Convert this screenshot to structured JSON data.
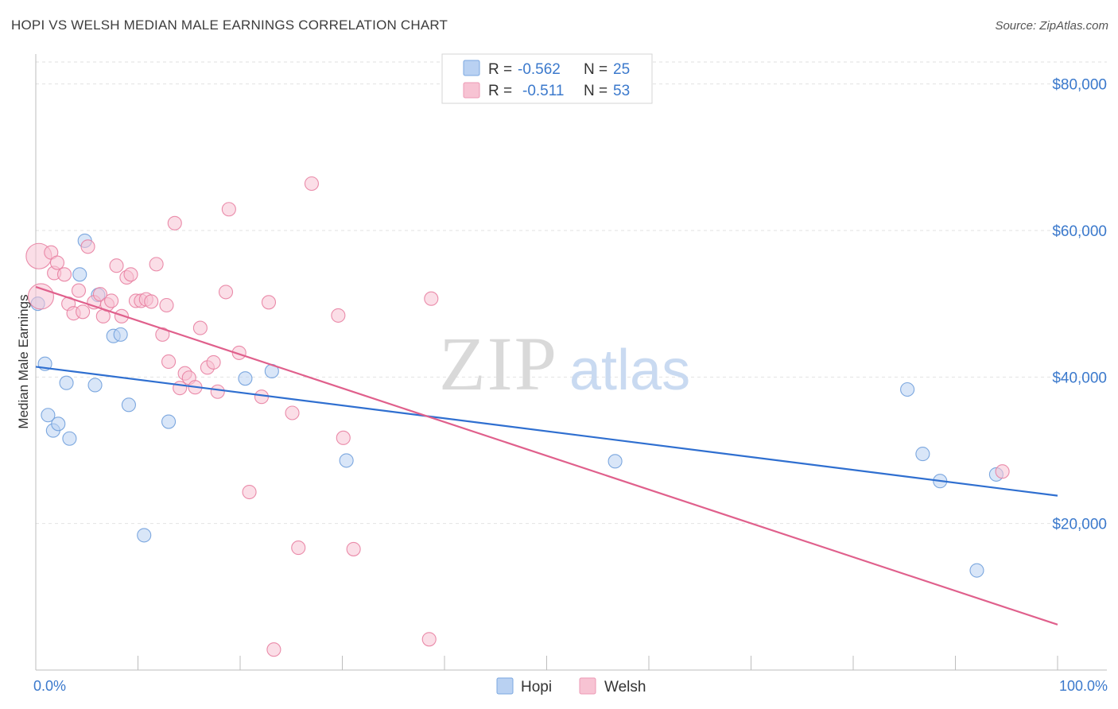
{
  "title": "HOPI VS WELSH MEDIAN MALE EARNINGS CORRELATION CHART",
  "source": "Source: ZipAtlas.com",
  "watermark": {
    "zip": "ZIP",
    "atlas": "atlas"
  },
  "legend_top": [
    {
      "r_label": "R = ",
      "r_value": "-0.562",
      "n_label": "N = ",
      "n_value": "25",
      "color": "#a9c6ef"
    },
    {
      "r_label": "R = ",
      "r_value": "-0.511",
      "n_label": "N = ",
      "n_value": "53",
      "color": "#f4b5c8"
    }
  ],
  "chart_data": {
    "type": "scatter",
    "title": "HOPI VS WELSH MEDIAN MALE EARNINGS CORRELATION CHART",
    "xlabel": "",
    "ylabel": "Median Male Earnings",
    "xlim": [
      0,
      100
    ],
    "ylim": [
      0,
      83000
    ],
    "x_tick_labels": [
      "0.0%",
      "100.0%"
    ],
    "y_ticks": [
      20000,
      40000,
      60000,
      80000
    ],
    "y_tick_labels": [
      "$20,000",
      "$40,000",
      "$60,000",
      "$80,000"
    ],
    "grid": true,
    "legend_position": "bottom-center",
    "series": [
      {
        "name": "Hopi",
        "color": "#6f9fdc",
        "fill": "#b9d1f2",
        "trend": {
          "x": [
            0,
            100
          ],
          "y": [
            41400,
            23800
          ]
        },
        "points": [
          {
            "x": 0.2,
            "y": 50000
          },
          {
            "x": 0.9,
            "y": 41800
          },
          {
            "x": 1.2,
            "y": 34800
          },
          {
            "x": 1.7,
            "y": 32700
          },
          {
            "x": 2.2,
            "y": 33600
          },
          {
            "x": 3.0,
            "y": 39200
          },
          {
            "x": 3.3,
            "y": 31600
          },
          {
            "x": 4.3,
            "y": 54000
          },
          {
            "x": 4.8,
            "y": 58600
          },
          {
            "x": 5.8,
            "y": 38900
          },
          {
            "x": 6.1,
            "y": 51200
          },
          {
            "x": 7.6,
            "y": 45600
          },
          {
            "x": 8.3,
            "y": 45800
          },
          {
            "x": 9.1,
            "y": 36200
          },
          {
            "x": 10.6,
            "y": 18400
          },
          {
            "x": 13.0,
            "y": 33900
          },
          {
            "x": 20.5,
            "y": 39800
          },
          {
            "x": 23.1,
            "y": 40800
          },
          {
            "x": 30.4,
            "y": 28600
          },
          {
            "x": 56.7,
            "y": 28500
          },
          {
            "x": 85.3,
            "y": 38300
          },
          {
            "x": 86.8,
            "y": 29500
          },
          {
            "x": 88.5,
            "y": 25800
          },
          {
            "x": 92.1,
            "y": 13600
          },
          {
            "x": 94.0,
            "y": 26700
          }
        ]
      },
      {
        "name": "Welsh",
        "color": "#e87fa1",
        "fill": "#f7c3d3",
        "trend": {
          "x": [
            0,
            100
          ],
          "y": [
            52300,
            6200
          ]
        },
        "points": [
          {
            "x": 0.3,
            "y": 56500,
            "big": true
          },
          {
            "x": 0.5,
            "y": 51000,
            "big": true
          },
          {
            "x": 1.5,
            "y": 57000
          },
          {
            "x": 1.8,
            "y": 54200
          },
          {
            "x": 2.1,
            "y": 55600
          },
          {
            "x": 2.8,
            "y": 54000
          },
          {
            "x": 3.2,
            "y": 50000
          },
          {
            "x": 3.7,
            "y": 48700
          },
          {
            "x": 4.2,
            "y": 51800
          },
          {
            "x": 4.6,
            "y": 48900
          },
          {
            "x": 5.1,
            "y": 57800
          },
          {
            "x": 5.7,
            "y": 50200
          },
          {
            "x": 6.3,
            "y": 51300
          },
          {
            "x": 6.6,
            "y": 48300
          },
          {
            "x": 7.0,
            "y": 49900
          },
          {
            "x": 7.4,
            "y": 50400
          },
          {
            "x": 7.9,
            "y": 55200
          },
          {
            "x": 8.4,
            "y": 48300
          },
          {
            "x": 8.9,
            "y": 53600
          },
          {
            "x": 9.3,
            "y": 54000
          },
          {
            "x": 9.8,
            "y": 50400
          },
          {
            "x": 10.3,
            "y": 50400
          },
          {
            "x": 10.8,
            "y": 50600
          },
          {
            "x": 11.3,
            "y": 50300
          },
          {
            "x": 11.8,
            "y": 55400
          },
          {
            "x": 12.4,
            "y": 45800
          },
          {
            "x": 12.8,
            "y": 49800
          },
          {
            "x": 13.0,
            "y": 42100
          },
          {
            "x": 13.6,
            "y": 61000
          },
          {
            "x": 14.1,
            "y": 38500
          },
          {
            "x": 14.6,
            "y": 40500
          },
          {
            "x": 15.0,
            "y": 39900
          },
          {
            "x": 15.6,
            "y": 38600
          },
          {
            "x": 16.1,
            "y": 46700
          },
          {
            "x": 16.8,
            "y": 41300
          },
          {
            "x": 17.4,
            "y": 42000
          },
          {
            "x": 17.8,
            "y": 38000
          },
          {
            "x": 18.6,
            "y": 51600
          },
          {
            "x": 18.9,
            "y": 62900
          },
          {
            "x": 19.9,
            "y": 43300
          },
          {
            "x": 20.9,
            "y": 24300
          },
          {
            "x": 22.1,
            "y": 37300
          },
          {
            "x": 22.8,
            "y": 50200
          },
          {
            "x": 23.3,
            "y": 2800
          },
          {
            "x": 25.1,
            "y": 35100
          },
          {
            "x": 25.7,
            "y": 16700
          },
          {
            "x": 27.0,
            "y": 66400
          },
          {
            "x": 29.6,
            "y": 48400
          },
          {
            "x": 30.1,
            "y": 31700
          },
          {
            "x": 31.1,
            "y": 16500
          },
          {
            "x": 38.5,
            "y": 4200
          },
          {
            "x": 38.7,
            "y": 50700
          },
          {
            "x": 94.6,
            "y": 27100
          }
        ]
      }
    ]
  }
}
